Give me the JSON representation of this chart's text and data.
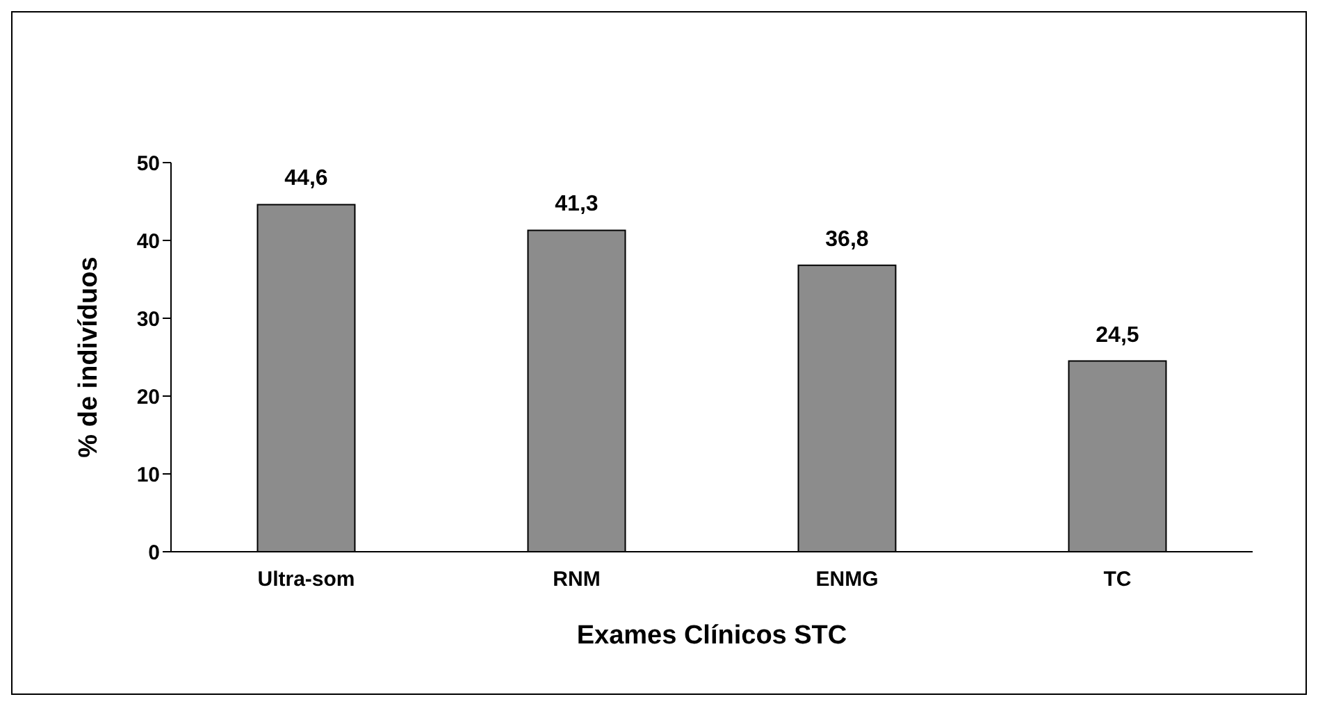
{
  "chart_data": {
    "type": "bar",
    "xlabel": "Exames Clínicos STC",
    "ylabel": "% de indivíduos",
    "categories": [
      "Ultra-som",
      "RNM",
      "ENMG",
      "TC"
    ],
    "values": [
      44.6,
      41.3,
      36.8,
      24.5
    ],
    "value_labels": [
      "44,6",
      "41,3",
      "36,8",
      "24,5"
    ],
    "color": "#8c8c8c",
    "ylim": [
      0,
      50
    ],
    "yticks": [
      0,
      10,
      20,
      30,
      40,
      50
    ],
    "grid": false,
    "legend": false
  }
}
